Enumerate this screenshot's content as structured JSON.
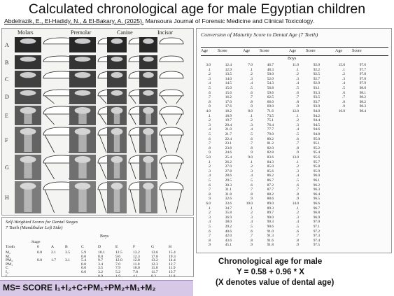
{
  "title": "Calculated chronological age for male Egyptian children",
  "citation": {
    "authors": "Abdelrazik, E., El-Hadidy, N., & El-Bakary, A. (2025).",
    "source": "Mansoura Journal of Forensic Medicine and Clinical Toxicology."
  },
  "figure": {
    "columns": [
      "Molars",
      "Premolar",
      "Canine",
      "Incisor"
    ],
    "rows": [
      "A",
      "B",
      "C",
      "D",
      "E",
      "F",
      "G",
      "H"
    ]
  },
  "scores_table": {
    "caption_line1": "Self-Weighted Scores for Dental Stages",
    "caption_line2": "7 Teeth (Mandibular Left Side)",
    "boys_label": "Boys",
    "stage_label": "Stage",
    "tooth_label": "Tooth",
    "stages": [
      "0",
      "A",
      "B",
      "C",
      "D",
      "E",
      "F",
      "G",
      "H"
    ],
    "rows": [
      {
        "tooth": "M₂",
        "values": [
          "0.0",
          "2.1",
          "3.5",
          "5.9",
          "10.1",
          "12.5",
          "13.2",
          "13.6",
          "15.4"
        ]
      },
      {
        "tooth": "M₁",
        "values": [
          "",
          "",
          "",
          "0.0",
          "8.0",
          "9.6",
          "12.3",
          "17.0",
          "19.3"
        ]
      },
      {
        "tooth": "PM₂",
        "values": [
          "0.0",
          "1.7",
          "3.1",
          "5.4",
          "9.7",
          "12.0",
          "12.8",
          "13.2",
          "14.4"
        ]
      },
      {
        "tooth": "PM₁",
        "values": [
          "",
          "",
          "",
          "0.0",
          "3.4",
          "7.0",
          "11.0",
          "12.3",
          "12.7"
        ]
      },
      {
        "tooth": "C",
        "values": [
          "",
          "",
          "",
          "0.0",
          "3.5",
          "7.9",
          "10.0",
          "11.0",
          "11.9"
        ]
      },
      {
        "tooth": "I₂",
        "values": [
          "",
          "",
          "",
          "0.0",
          "3.2",
          "5.2",
          "7.8",
          "11.7",
          "13.7"
        ]
      },
      {
        "tooth": "I₁",
        "values": [
          "",
          "",
          "",
          "",
          "0.0",
          "1.9",
          "4.1",
          "8.2",
          "11.8"
        ]
      }
    ]
  },
  "ms_formula": "MS= SCORE I₁+I₂+C+PM₁+PM₂+M₁+M₂",
  "conversion_table": {
    "title": "Conversion of Maturity Score to Dental Age (7 Teeth)",
    "headers": [
      "Age",
      "Score",
      "Age",
      "Score",
      "Age",
      "Score",
      "Age",
      "Score"
    ],
    "boys_label": "Boys",
    "columns": [
      [
        [
          "3.0",
          "12.4"
        ],
        [
          ".1",
          "12.9"
        ],
        [
          ".2",
          "13.5"
        ],
        [
          ".3",
          "14.0"
        ],
        [
          ".4",
          "14.5"
        ],
        [
          ".5",
          "15.0"
        ],
        [
          ".6",
          "15.6"
        ],
        [
          ".7",
          "16.2"
        ],
        [
          ".8",
          "17.0"
        ],
        [
          ".9",
          "17.6"
        ],
        [
          "4.0",
          "18.2"
        ],
        [
          ".1",
          "18.9"
        ],
        [
          ".2",
          "19.7"
        ],
        [
          ".3",
          "20.4"
        ],
        [
          ".4",
          "21.0"
        ],
        [
          ".5",
          "21.7"
        ],
        [
          ".6",
          "22.4"
        ],
        [
          ".7",
          "23.1"
        ],
        [
          ".8",
          "23.8"
        ],
        [
          ".9",
          "24.6"
        ],
        [
          "5.0",
          "25.4"
        ],
        [
          ".1",
          "26.2"
        ],
        [
          ".2",
          "27.0"
        ],
        [
          ".3",
          "27.8"
        ],
        [
          ".4",
          "28.6"
        ],
        [
          ".5",
          "29.5"
        ],
        [
          ".6",
          "30.3"
        ],
        [
          ".7",
          "31.1"
        ],
        [
          ".8",
          "31.8"
        ],
        [
          ".9",
          "32.6"
        ],
        [
          "6.0",
          "33.6"
        ],
        [
          ".1",
          "34.7"
        ],
        [
          ".2",
          "35.8"
        ],
        [
          ".3",
          "36.9"
        ],
        [
          ".4",
          "38.0"
        ],
        [
          ".5",
          "39.2"
        ],
        [
          ".6",
          "40.6"
        ],
        [
          ".7",
          "42.0"
        ],
        [
          ".8",
          "43.6"
        ],
        [
          ".9",
          "45.1"
        ]
      ],
      [
        [
          "7.0",
          "46.7"
        ],
        [
          ".1",
          "48.3"
        ],
        [
          ".2",
          "50.0"
        ],
        [
          ".3",
          "52.0"
        ],
        [
          ".4",
          "54.3"
        ],
        [
          ".5",
          "56.8"
        ],
        [
          ".6",
          "59.6"
        ],
        [
          ".7",
          "62.5"
        ],
        [
          ".8",
          "66.0"
        ],
        [
          ".9",
          "69.0"
        ],
        [
          "8.0",
          "71.6"
        ],
        [
          ".1",
          "73.5"
        ],
        [
          ".2",
          "75.1"
        ],
        [
          ".3",
          "76.4"
        ],
        [
          ".4",
          "77.7"
        ],
        [
          ".5",
          "79.0"
        ],
        [
          ".6",
          "80.2"
        ],
        [
          ".7",
          "81.2"
        ],
        [
          ".8",
          "82.0"
        ],
        [
          ".9",
          "82.8"
        ],
        [
          "9.0",
          "83.6"
        ],
        [
          ".1",
          "84.3"
        ],
        [
          ".2",
          "85.0"
        ],
        [
          ".3",
          "85.6"
        ],
        [
          ".4",
          "86.2"
        ],
        [
          ".5",
          "86.7"
        ],
        [
          ".6",
          "87.2"
        ],
        [
          ".7",
          "87.7"
        ],
        [
          ".8",
          "88.2"
        ],
        [
          ".9",
          "88.6"
        ],
        [
          "10.0",
          "89.0"
        ],
        [
          ".1",
          "89.3"
        ],
        [
          ".2",
          "89.7"
        ],
        [
          ".3",
          "90.0"
        ],
        [
          ".4",
          "90.3"
        ],
        [
          ".5",
          "90.6"
        ],
        [
          ".6",
          "91.0"
        ],
        [
          ".7",
          "91.3"
        ],
        [
          ".8",
          "91.6"
        ],
        [
          ".9",
          "91.8"
        ]
      ],
      [
        [
          "11.0",
          "92.0"
        ],
        [
          ".1",
          "92.2"
        ],
        [
          ".2",
          "92.5"
        ],
        [
          ".3",
          "92.7"
        ],
        [
          ".4",
          "92.9"
        ],
        [
          ".5",
          "93.1"
        ],
        [
          ".6",
          "93.3"
        ],
        [
          ".7",
          "93.5"
        ],
        [
          ".8",
          "93.7"
        ],
        [
          ".9",
          "93.9"
        ],
        [
          "12.0",
          "94.0"
        ],
        [
          ".1",
          "94.2"
        ],
        [
          ".2",
          "94.4"
        ],
        [
          ".3",
          "94.5"
        ],
        [
          ".4",
          "94.6"
        ],
        [
          ".5",
          "94.8"
        ],
        [
          ".6",
          "95.0"
        ],
        [
          ".7",
          "95.1"
        ],
        [
          ".8",
          "95.2"
        ],
        [
          ".9",
          "95.4"
        ],
        [
          "13.0",
          "95.6"
        ],
        [
          ".1",
          "95.7"
        ],
        [
          ".2",
          "95.8"
        ],
        [
          ".3",
          "95.9"
        ],
        [
          ".4",
          "96.0"
        ],
        [
          ".5",
          "96.1"
        ],
        [
          ".6",
          "96.2"
        ],
        [
          ".7",
          "96.3"
        ],
        [
          ".8",
          "96.4"
        ],
        [
          ".9",
          "96.5"
        ],
        [
          "14.0",
          "96.6"
        ],
        [
          ".1",
          "96.7"
        ],
        [
          ".2",
          "96.8"
        ],
        [
          ".3",
          "96.9"
        ],
        [
          ".4",
          "97.0"
        ],
        [
          ".5",
          "97.1"
        ],
        [
          ".6",
          "97.2"
        ],
        [
          ".7",
          "97.3"
        ],
        [
          ".8",
          "97.4"
        ],
        [
          ".9",
          "97.5"
        ]
      ],
      [
        [
          "15.0",
          "97.6"
        ],
        [
          ".1",
          "97.7"
        ],
        [
          ".2",
          "97.8"
        ],
        [
          ".3",
          "97.8"
        ],
        [
          ".4",
          "97.9"
        ],
        [
          ".5",
          "98.0"
        ],
        [
          ".6",
          "98.1"
        ],
        [
          ".7",
          "98.2"
        ],
        [
          ".8",
          "98.2"
        ],
        [
          ".9",
          "98.3"
        ],
        [
          "16.0",
          "98.4"
        ]
      ]
    ]
  },
  "regression": {
    "line1": "Chronological age for male",
    "line2": "Y = 0.58 + 0.96 * X",
    "line3": "(X denotes value of dental age)"
  }
}
